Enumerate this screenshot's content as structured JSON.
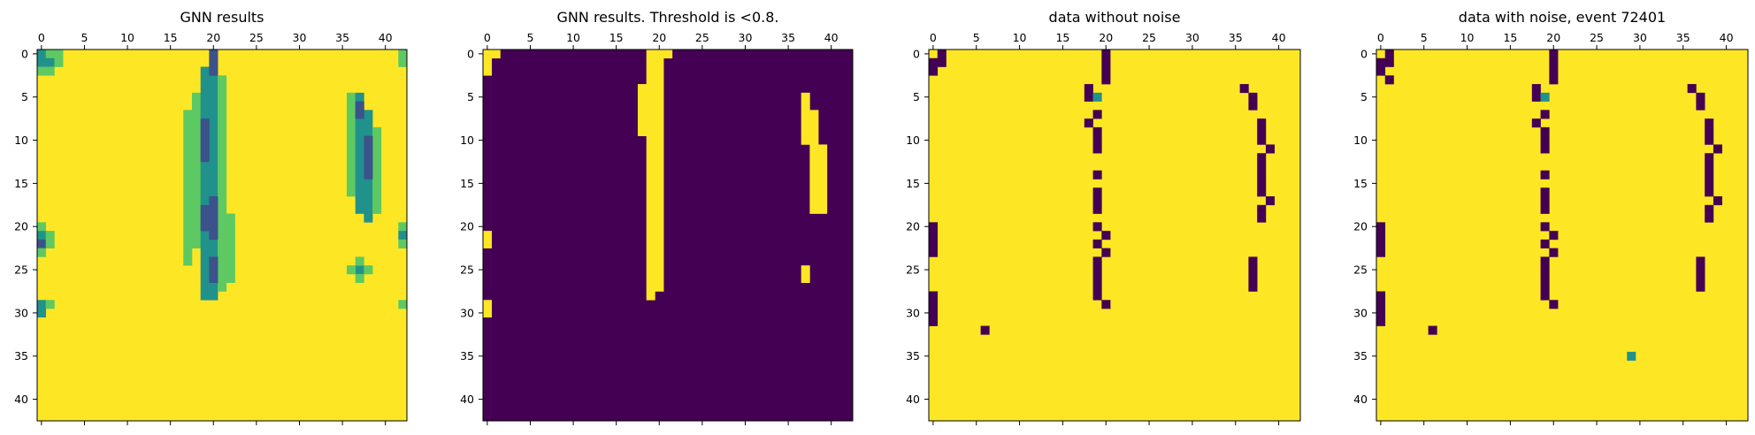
{
  "colors": {
    "dark": "#440154",
    "light": "#fde725",
    "mid": "#21918c",
    "mid2": "#3b528b",
    "mid3": "#5ec962",
    "axis": "#000000",
    "bg": "#ffffff"
  },
  "chart_data": [
    {
      "type": "heatmap",
      "title": "GNN results",
      "size": 43,
      "xticks": [
        0,
        5,
        10,
        15,
        20,
        25,
        30,
        35,
        40
      ],
      "yticks": [
        0,
        5,
        10,
        15,
        20,
        25,
        30,
        35,
        40
      ],
      "xticks_position": "top",
      "background": "light",
      "cells": [
        {
          "x": 0,
          "y": 0,
          "v": "mid"
        },
        {
          "x": 1,
          "y": 0,
          "v": "mid3"
        },
        {
          "x": 2,
          "y": 0,
          "v": "mid3"
        },
        {
          "x": 0,
          "y": 1,
          "v": "mid"
        },
        {
          "x": 1,
          "y": 1,
          "v": "mid"
        },
        {
          "x": 2,
          "y": 1,
          "v": "mid3"
        },
        {
          "x": 0,
          "y": 2,
          "v": "mid3"
        },
        {
          "x": 1,
          "y": 2,
          "v": "mid3"
        },
        {
          "x": 42,
          "y": 0,
          "v": "mid3"
        },
        {
          "x": 42,
          "y": 1,
          "v": "mid3"
        },
        {
          "x": 0,
          "y": 20,
          "v": "mid3"
        },
        {
          "x": 0,
          "y": 21,
          "v": "mid"
        },
        {
          "x": 1,
          "y": 21,
          "v": "mid3"
        },
        {
          "x": 0,
          "y": 22,
          "v": "mid2"
        },
        {
          "x": 1,
          "y": 22,
          "v": "mid3"
        },
        {
          "x": 0,
          "y": 23,
          "v": "mid3"
        },
        {
          "x": 42,
          "y": 20,
          "v": "mid3"
        },
        {
          "x": 42,
          "y": 21,
          "v": "mid"
        },
        {
          "x": 42,
          "y": 22,
          "v": "mid3"
        },
        {
          "x": 0,
          "y": 29,
          "v": "mid"
        },
        {
          "x": 0,
          "y": 30,
          "v": "mid"
        },
        {
          "x": 1,
          "y": 29,
          "v": "mid3"
        },
        {
          "x": 42,
          "y": 29,
          "v": "mid3"
        },
        {
          "x": 37,
          "y": 25,
          "v": "mid"
        },
        {
          "x": 36,
          "y": 25,
          "v": "mid3"
        },
        {
          "x": 38,
          "y": 25,
          "v": "mid3"
        },
        {
          "x": 37,
          "y": 24,
          "v": "mid3"
        },
        {
          "x": 37,
          "y": 26,
          "v": "mid3"
        }
      ],
      "bands": [
        {
          "x": 18,
          "y0": 5,
          "y1": 22,
          "v": "mid3"
        },
        {
          "x": 19,
          "y0": 2,
          "y1": 28,
          "v": "mid"
        },
        {
          "x": 20,
          "y0": 0,
          "y1": 28,
          "v": "mid"
        },
        {
          "x": 21,
          "y0": 3,
          "y1": 27,
          "v": "mid3"
        },
        {
          "x": 17,
          "y0": 7,
          "y1": 24,
          "v": "mid3"
        },
        {
          "x": 22,
          "y0": 19,
          "y1": 26,
          "v": "mid3"
        },
        {
          "x": 36,
          "y0": 5,
          "y1": 16,
          "v": "mid3"
        },
        {
          "x": 37,
          "y0": 5,
          "y1": 18,
          "v": "mid"
        },
        {
          "x": 38,
          "y0": 7,
          "y1": 19,
          "v": "mid"
        },
        {
          "x": 39,
          "y0": 9,
          "y1": 18,
          "v": "mid3"
        }
      ],
      "dark_cells": [
        {
          "x": 20,
          "y0": 0,
          "y1": 2
        },
        {
          "x": 19,
          "y0": 8,
          "y1": 12
        },
        {
          "x": 20,
          "y0": 17,
          "y1": 21
        },
        {
          "x": 19,
          "y0": 18,
          "y1": 20
        },
        {
          "x": 20,
          "y0": 24,
          "y1": 26
        },
        {
          "x": 37,
          "y0": 6,
          "y1": 7
        },
        {
          "x": 38,
          "y0": 10,
          "y1": 14
        }
      ]
    },
    {
      "type": "heatmap",
      "title": "GNN results. Threshold is <0.8.",
      "size": 43,
      "xticks": [
        0,
        5,
        10,
        15,
        20,
        25,
        30,
        35,
        40
      ],
      "yticks": [
        0,
        5,
        10,
        15,
        20,
        25,
        30,
        35,
        40
      ],
      "xticks_position": "top",
      "background": "dark",
      "bands": [
        {
          "x": 0,
          "y0": 0,
          "y1": 2,
          "v": "light"
        },
        {
          "x": 1,
          "y0": 0,
          "y1": 0,
          "v": "light"
        },
        {
          "x": 0,
          "y0": 21,
          "y1": 22,
          "v": "light"
        },
        {
          "x": 0,
          "y0": 29,
          "y1": 30,
          "v": "light"
        },
        {
          "x": 18,
          "y0": 4,
          "y1": 9,
          "v": "light"
        },
        {
          "x": 19,
          "y0": 0,
          "y1": 28,
          "v": "light"
        },
        {
          "x": 20,
          "y0": 0,
          "y1": 27,
          "v": "light"
        },
        {
          "x": 21,
          "y0": 0,
          "y1": 0,
          "v": "light"
        },
        {
          "x": 37,
          "y0": 5,
          "y1": 10,
          "v": "light"
        },
        {
          "x": 38,
          "y0": 7,
          "y1": 18,
          "v": "light"
        },
        {
          "x": 39,
          "y0": 11,
          "y1": 18,
          "v": "light"
        },
        {
          "x": 37,
          "y0": 25,
          "y1": 26,
          "v": "light"
        }
      ]
    },
    {
      "type": "heatmap",
      "title": "data without noise",
      "size": 43,
      "xticks": [
        0,
        5,
        10,
        15,
        20,
        25,
        30,
        35,
        40
      ],
      "yticks": [
        0,
        5,
        10,
        15,
        20,
        25,
        30,
        35,
        40
      ],
      "xticks_position": "top",
      "background": "light",
      "cells": [
        {
          "x": 1,
          "y": 0,
          "v": "dark"
        },
        {
          "x": 1,
          "y": 1,
          "v": "dark"
        },
        {
          "x": 0,
          "y": 1,
          "v": "dark"
        },
        {
          "x": 0,
          "y": 2,
          "v": "dark"
        },
        {
          "x": 20,
          "y": 0,
          "v": "dark"
        },
        {
          "x": 20,
          "y": 1,
          "v": "dark"
        },
        {
          "x": 20,
          "y": 2,
          "v": "dark"
        },
        {
          "x": 20,
          "y": 3,
          "v": "dark"
        },
        {
          "x": 18,
          "y": 4,
          "v": "dark"
        },
        {
          "x": 18,
          "y": 5,
          "v": "dark"
        },
        {
          "x": 19,
          "y": 5,
          "v": "mid"
        },
        {
          "x": 19,
          "y": 7,
          "v": "dark"
        },
        {
          "x": 18,
          "y": 8,
          "v": "dark"
        },
        {
          "x": 19,
          "y": 9,
          "v": "dark"
        },
        {
          "x": 19,
          "y": 10,
          "v": "dark"
        },
        {
          "x": 19,
          "y": 11,
          "v": "dark"
        },
        {
          "x": 19,
          "y": 14,
          "v": "dark"
        },
        {
          "x": 19,
          "y": 16,
          "v": "dark"
        },
        {
          "x": 19,
          "y": 17,
          "v": "dark"
        },
        {
          "x": 19,
          "y": 18,
          "v": "dark"
        },
        {
          "x": 19,
          "y": 20,
          "v": "dark"
        },
        {
          "x": 20,
          "y": 21,
          "v": "dark"
        },
        {
          "x": 19,
          "y": 22,
          "v": "dark"
        },
        {
          "x": 20,
          "y": 23,
          "v": "dark"
        },
        {
          "x": 19,
          "y": 24,
          "v": "dark"
        },
        {
          "x": 19,
          "y": 25,
          "v": "dark"
        },
        {
          "x": 19,
          "y": 26,
          "v": "dark"
        },
        {
          "x": 19,
          "y": 27,
          "v": "dark"
        },
        {
          "x": 19,
          "y": 28,
          "v": "dark"
        },
        {
          "x": 20,
          "y": 29,
          "v": "dark"
        },
        {
          "x": 36,
          "y": 4,
          "v": "dark"
        },
        {
          "x": 37,
          "y": 5,
          "v": "dark"
        },
        {
          "x": 37,
          "y": 6,
          "v": "dark"
        },
        {
          "x": 38,
          "y": 8,
          "v": "dark"
        },
        {
          "x": 38,
          "y": 9,
          "v": "dark"
        },
        {
          "x": 38,
          "y": 10,
          "v": "dark"
        },
        {
          "x": 39,
          "y": 11,
          "v": "dark"
        },
        {
          "x": 38,
          "y": 12,
          "v": "dark"
        },
        {
          "x": 38,
          "y": 13,
          "v": "dark"
        },
        {
          "x": 38,
          "y": 14,
          "v": "dark"
        },
        {
          "x": 38,
          "y": 15,
          "v": "dark"
        },
        {
          "x": 38,
          "y": 16,
          "v": "dark"
        },
        {
          "x": 39,
          "y": 17,
          "v": "dark"
        },
        {
          "x": 38,
          "y": 18,
          "v": "dark"
        },
        {
          "x": 38,
          "y": 19,
          "v": "dark"
        },
        {
          "x": 37,
          "y": 24,
          "v": "dark"
        },
        {
          "x": 37,
          "y": 25,
          "v": "dark"
        },
        {
          "x": 37,
          "y": 26,
          "v": "dark"
        },
        {
          "x": 37,
          "y": 27,
          "v": "dark"
        },
        {
          "x": 0,
          "y": 20,
          "v": "dark"
        },
        {
          "x": 0,
          "y": 21,
          "v": "dark"
        },
        {
          "x": 0,
          "y": 22,
          "v": "dark"
        },
        {
          "x": 0,
          "y": 23,
          "v": "dark"
        },
        {
          "x": 0,
          "y": 28,
          "v": "dark"
        },
        {
          "x": 0,
          "y": 29,
          "v": "dark"
        },
        {
          "x": 0,
          "y": 30,
          "v": "dark"
        },
        {
          "x": 0,
          "y": 31,
          "v": "dark"
        },
        {
          "x": 6,
          "y": 32,
          "v": "dark"
        }
      ]
    },
    {
      "type": "heatmap",
      "title": "data with noise, event 72401",
      "size": 43,
      "xticks": [
        0,
        5,
        10,
        15,
        20,
        25,
        30,
        35,
        40
      ],
      "yticks": [
        0,
        5,
        10,
        15,
        20,
        25,
        30,
        35,
        40
      ],
      "xticks_position": "top",
      "background": "light",
      "cells": [
        {
          "x": 1,
          "y": 0,
          "v": "dark"
        },
        {
          "x": 1,
          "y": 1,
          "v": "dark"
        },
        {
          "x": 0,
          "y": 1,
          "v": "dark"
        },
        {
          "x": 0,
          "y": 2,
          "v": "dark"
        },
        {
          "x": 1,
          "y": 3,
          "v": "dark"
        },
        {
          "x": 20,
          "y": 0,
          "v": "dark"
        },
        {
          "x": 20,
          "y": 1,
          "v": "dark"
        },
        {
          "x": 20,
          "y": 2,
          "v": "dark"
        },
        {
          "x": 20,
          "y": 3,
          "v": "dark"
        },
        {
          "x": 18,
          "y": 4,
          "v": "dark"
        },
        {
          "x": 18,
          "y": 5,
          "v": "dark"
        },
        {
          "x": 19,
          "y": 5,
          "v": "mid"
        },
        {
          "x": 19,
          "y": 7,
          "v": "dark"
        },
        {
          "x": 18,
          "y": 8,
          "v": "dark"
        },
        {
          "x": 19,
          "y": 9,
          "v": "dark"
        },
        {
          "x": 19,
          "y": 10,
          "v": "dark"
        },
        {
          "x": 19,
          "y": 11,
          "v": "dark"
        },
        {
          "x": 19,
          "y": 14,
          "v": "dark"
        },
        {
          "x": 19,
          "y": 16,
          "v": "dark"
        },
        {
          "x": 19,
          "y": 17,
          "v": "dark"
        },
        {
          "x": 19,
          "y": 18,
          "v": "dark"
        },
        {
          "x": 19,
          "y": 20,
          "v": "dark"
        },
        {
          "x": 20,
          "y": 21,
          "v": "dark"
        },
        {
          "x": 19,
          "y": 22,
          "v": "dark"
        },
        {
          "x": 20,
          "y": 23,
          "v": "dark"
        },
        {
          "x": 19,
          "y": 24,
          "v": "dark"
        },
        {
          "x": 19,
          "y": 25,
          "v": "dark"
        },
        {
          "x": 19,
          "y": 26,
          "v": "dark"
        },
        {
          "x": 19,
          "y": 27,
          "v": "dark"
        },
        {
          "x": 19,
          "y": 28,
          "v": "dark"
        },
        {
          "x": 20,
          "y": 29,
          "v": "dark"
        },
        {
          "x": 36,
          "y": 4,
          "v": "dark"
        },
        {
          "x": 37,
          "y": 5,
          "v": "dark"
        },
        {
          "x": 37,
          "y": 6,
          "v": "dark"
        },
        {
          "x": 38,
          "y": 8,
          "v": "dark"
        },
        {
          "x": 38,
          "y": 9,
          "v": "dark"
        },
        {
          "x": 38,
          "y": 10,
          "v": "dark"
        },
        {
          "x": 39,
          "y": 11,
          "v": "dark"
        },
        {
          "x": 38,
          "y": 12,
          "v": "dark"
        },
        {
          "x": 38,
          "y": 13,
          "v": "dark"
        },
        {
          "x": 38,
          "y": 14,
          "v": "dark"
        },
        {
          "x": 38,
          "y": 15,
          "v": "dark"
        },
        {
          "x": 38,
          "y": 16,
          "v": "dark"
        },
        {
          "x": 39,
          "y": 17,
          "v": "dark"
        },
        {
          "x": 38,
          "y": 18,
          "v": "dark"
        },
        {
          "x": 38,
          "y": 19,
          "v": "dark"
        },
        {
          "x": 37,
          "y": 24,
          "v": "dark"
        },
        {
          "x": 37,
          "y": 25,
          "v": "dark"
        },
        {
          "x": 37,
          "y": 26,
          "v": "dark"
        },
        {
          "x": 37,
          "y": 27,
          "v": "dark"
        },
        {
          "x": 0,
          "y": 20,
          "v": "dark"
        },
        {
          "x": 0,
          "y": 21,
          "v": "dark"
        },
        {
          "x": 0,
          "y": 22,
          "v": "dark"
        },
        {
          "x": 0,
          "y": 23,
          "v": "dark"
        },
        {
          "x": 0,
          "y": 28,
          "v": "dark"
        },
        {
          "x": 0,
          "y": 29,
          "v": "dark"
        },
        {
          "x": 0,
          "y": 30,
          "v": "dark"
        },
        {
          "x": 0,
          "y": 31,
          "v": "dark"
        },
        {
          "x": 6,
          "y": 32,
          "v": "dark"
        },
        {
          "x": 29,
          "y": 35,
          "v": "mid"
        }
      ]
    }
  ]
}
